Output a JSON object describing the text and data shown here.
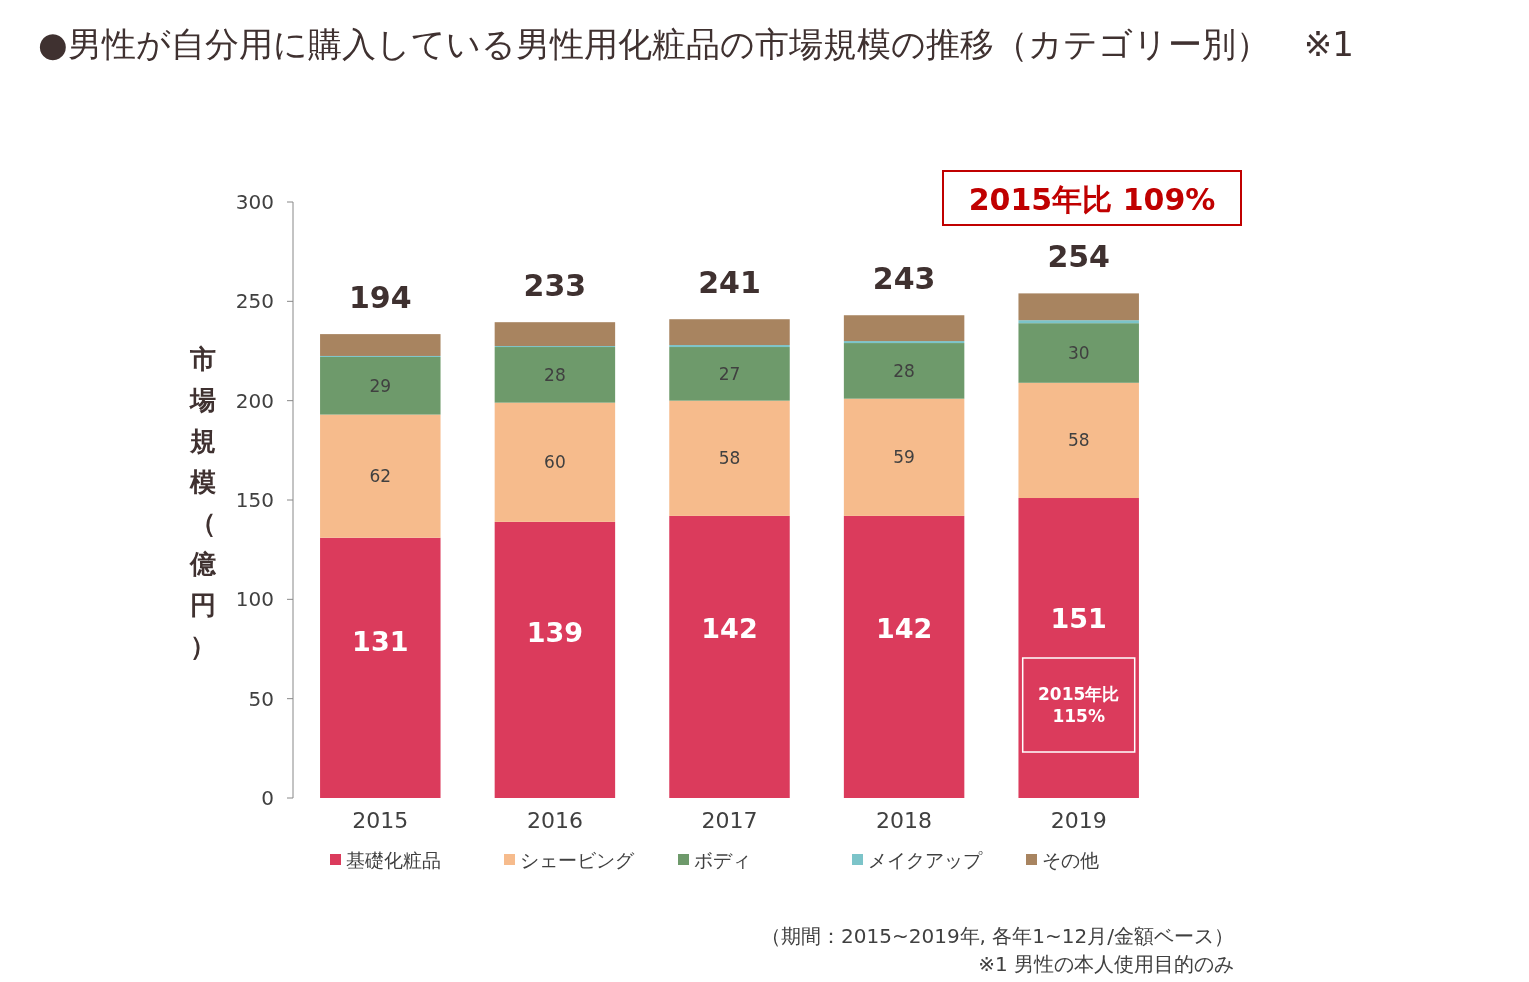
{
  "chart_data": {
    "type": "bar",
    "stacked": true,
    "title": "●男性が自分用に購入している男性用化粧品の市場規模の推移（カテゴリー別）　※1",
    "ylabel": "市場規模（億円）",
    "categories": [
      "2015",
      "2016",
      "2017",
      "2018",
      "2019"
    ],
    "series": [
      {
        "name": "基礎化粧品",
        "color": "#db3b5c",
        "values": [
          131,
          139,
          142,
          142,
          151
        ],
        "value_labels": [
          "131",
          "139",
          "142",
          "142",
          "151"
        ]
      },
      {
        "name": "シェービング",
        "color": "#f6bb8c",
        "values": [
          62,
          60,
          58,
          59,
          58
        ],
        "value_labels": [
          "62",
          "60",
          "58",
          "59",
          "58"
        ]
      },
      {
        "name": "ボディ",
        "color": "#6e9a6b",
        "values": [
          29,
          28,
          27,
          28,
          30
        ],
        "value_labels": [
          "29",
          "28",
          "27",
          "28",
          "30"
        ]
      },
      {
        "name": "メイクアップ",
        "color": "#7cc4c9",
        "values": [
          0.5,
          0.5,
          1,
          1,
          1.5
        ]
      },
      {
        "name": "その他",
        "color": "#a88460",
        "values": [
          11,
          12,
          13,
          13,
          13.5
        ]
      }
    ],
    "ylim": [
      0,
      300
    ],
    "yticks": [
      0,
      50,
      100,
      150,
      200,
      250,
      300
    ],
    "grid": false,
    "legend": "bottom",
    "annotations": [
      "194",
      "233",
      "241",
      "243",
      "254",
      "2015年比 109%",
      "2015年比 115%",
      "（期間：2015~2019年, 各年1~12月/金額ベース）",
      "※1 男性の本人使用目的のみ"
    ]
  }
}
